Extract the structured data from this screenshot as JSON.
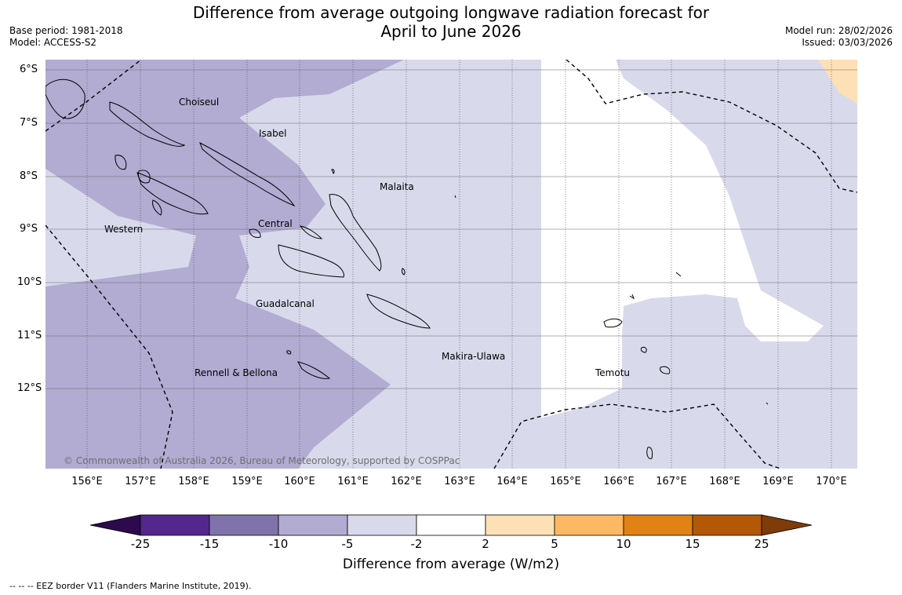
{
  "header": {
    "title_line1": "Difference from average outgoing longwave radiation forecast for",
    "title_line2": "April to June 2026",
    "base_period": "Base period: 1981-2018",
    "model": "Model: ACCESS-S2",
    "model_run": "Model run: 28/02/2026",
    "issued": "Issued: 03/03/2026"
  },
  "map": {
    "lat_labels": [
      "6°S",
      "7°S",
      "8°S",
      "9°S",
      "10°S",
      "11°S",
      "12°S"
    ],
    "lon_labels": [
      "156°E",
      "157°E",
      "158°E",
      "159°E",
      "160°E",
      "161°E",
      "162°E",
      "163°E",
      "164°E",
      "165°E",
      "166°E",
      "167°E",
      "168°E",
      "169°E",
      "170°E"
    ],
    "regions": {
      "choiseul": "Choiseul",
      "isabel": "Isabel",
      "malaita": "Malaita",
      "western": "Western",
      "central": "Central",
      "guadalcanal": "Guadalcanal",
      "makira_ulawa": "Makira-Ulawa",
      "rennell_bellona": "Rennell & Bellona",
      "temotu": "Temotu"
    },
    "copyright": "© Commonwealth of Australia 2026, Bureau of Meteorology, supported by COSPPac"
  },
  "colorbar": {
    "title": "Difference from average (W/m2)",
    "ticks": [
      "-25",
      "-15",
      "-10",
      "-5",
      "-2",
      "2",
      "5",
      "10",
      "15",
      "25"
    ],
    "colors": [
      "#2d0a4e",
      "#54278f",
      "#8073ac",
      "#b2abd2",
      "#d8daeb",
      "#ffffff",
      "#fee0b6",
      "#fdb863",
      "#e08214",
      "#b35806",
      "#7f3b08"
    ]
  },
  "footnote": "--  --  -- EEZ border V11 (Flanders Marine Institute, 2019)."
}
